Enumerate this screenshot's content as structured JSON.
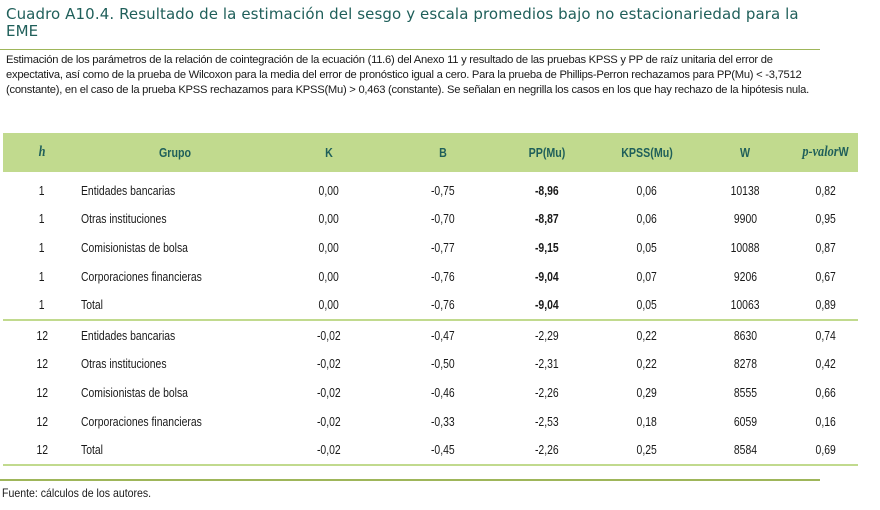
{
  "title": "Cuadro A10.4. Resultado de la estimación del sesgo y escala promedios bajo no estacionariedad para la EME",
  "description": "Estimación de los parámetros de la relación de cointegración de la ecuación (11.6) del Anexo 11 y resultado de las pruebas KPSS y PP de raíz unitaria del error de expectativa, así como de la prueba de Wilcoxon para la media del error de pronóstico igual a cero. Para la prueba de Phillips-Perron rechazamos para PP(Mu) < -3,7512 (constante), en el caso de la prueba KPSS rechazamos para KPSS(Mu) > 0,463 (constante). Se señalan en negrilla los casos en los que hay rechazo de la hipótesis nula.",
  "table": {
    "headers": {
      "h": "h",
      "grupo": "Grupo",
      "k": "K",
      "b": "B",
      "pp": "PP(Mu)",
      "kpss": "KPSS(Mu)",
      "w": "W",
      "pvalor_italic": "p-valor",
      "pvalor_suffix": "W"
    },
    "rows": [
      {
        "h": "1",
        "grupo": "Entidades bancarias",
        "k": "0,00",
        "b": "-0,75",
        "pp": "-8,96",
        "kpss": "0,06",
        "w": "10138",
        "pvalor": "0,82"
      },
      {
        "h": "1",
        "grupo": "Otras instituciones",
        "k": "0,00",
        "b": "-0,70",
        "pp": "-8,87",
        "kpss": "0,06",
        "w": "9900",
        "pvalor": "0,95"
      },
      {
        "h": "1",
        "grupo": "Comisionistas de bolsa",
        "k": "0,00",
        "b": "-0,77",
        "pp": "-9,15",
        "kpss": "0,05",
        "w": "10088",
        "pvalor": "0,87"
      },
      {
        "h": "1",
        "grupo": "Corporaciones financieras",
        "k": "0,00",
        "b": "-0,76",
        "pp": "-9,04",
        "kpss": "0,07",
        "w": "9206",
        "pvalor": "0,67"
      },
      {
        "h": "1",
        "grupo": "Total",
        "k": "0,00",
        "b": "-0,76",
        "pp": "-9,04",
        "kpss": "0,05",
        "w": "10063",
        "pvalor": "0,89"
      },
      {
        "h": "12",
        "grupo": "Entidades bancarias",
        "k": "-0,02",
        "b": "-0,47",
        "pp": "-2,29",
        "kpss": "0,22",
        "w": "8630",
        "pvalor": "0,74"
      },
      {
        "h": "12",
        "grupo": "Otras instituciones",
        "k": "-0,02",
        "b": "-0,50",
        "pp": "-2,31",
        "kpss": "0,22",
        "w": "8278",
        "pvalor": "0,42"
      },
      {
        "h": "12",
        "grupo": "Comisionistas de bolsa",
        "k": "-0,02",
        "b": "-0,46",
        "pp": "-2,26",
        "kpss": "0,29",
        "w": "8555",
        "pvalor": "0,66"
      },
      {
        "h": "12",
        "grupo": "Corporaciones financieras",
        "k": "-0,02",
        "b": "-0,33",
        "pp": "-2,53",
        "kpss": "0,18",
        "w": "6059",
        "pvalor": "0,16"
      },
      {
        "h": "12",
        "grupo": "Total",
        "k": "-0,02",
        "b": "-0,45",
        "pp": "-2,26",
        "kpss": "0,25",
        "w": "8584",
        "pvalor": "0,69"
      }
    ]
  },
  "source": "Fuente: cálculos de los autores.",
  "colors": {
    "title": "#1f5f5a",
    "header_bg": "#c1da8e",
    "rule": "#9fb65a"
  }
}
